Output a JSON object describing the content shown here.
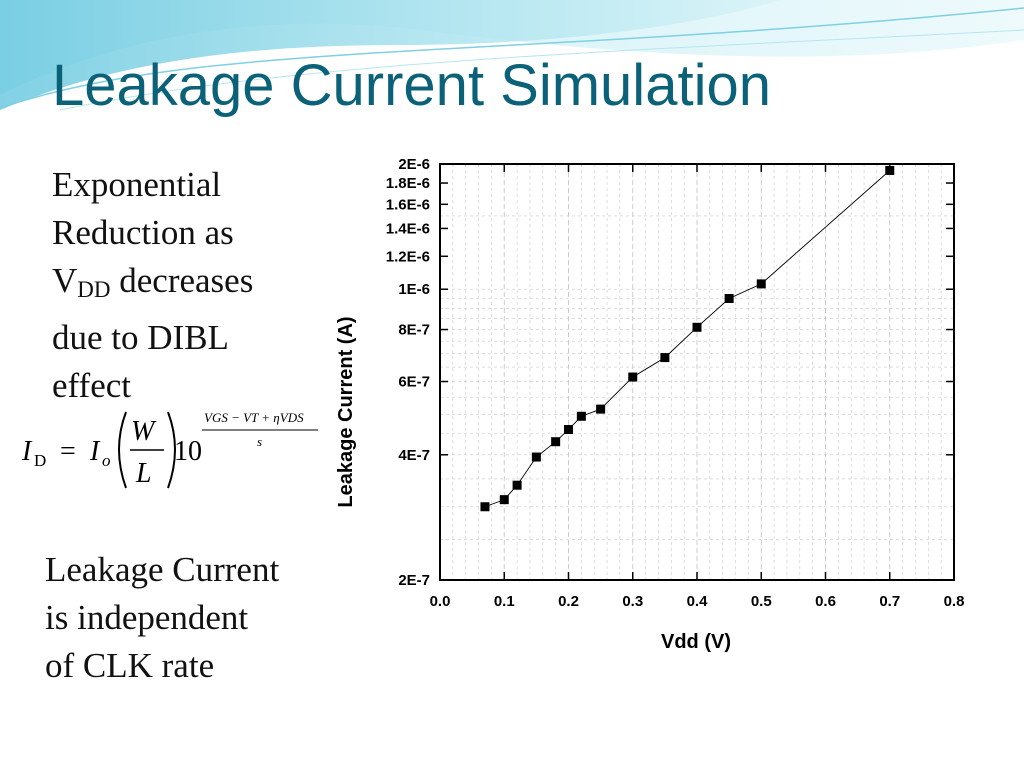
{
  "slide": {
    "title": "Leakage Current Simulation",
    "para1": {
      "line1": "Exponential",
      "line2": "Reduction as",
      "line3_main": "V",
      "line3_sub": "DD",
      "line3_rest": " decreases",
      "line4": "due to DIBL",
      "line5": "effect"
    },
    "para2": {
      "line1": "Leakage Current",
      "line2": "is independent",
      "line3": "of  CLK rate"
    },
    "formula": {
      "lhs": "I",
      "lhs_sub": "D",
      "eq": "=",
      "io": "I",
      "io_sub": "o",
      "numerator": "W",
      "denominator": "L",
      "base": "10",
      "exponent": "VGS − VT + ηVDS",
      "exponent_denominator": "s"
    }
  },
  "chart_data": {
    "type": "scatter",
    "title": "",
    "xlabel": "Vdd (V)",
    "ylabel": "Leakage Current (A)",
    "xlim": [
      0.0,
      0.8
    ],
    "ylim": [
      2e-07,
      2e-06
    ],
    "yscale": "log",
    "grid": true,
    "x_ticks": [
      {
        "v": 0.0,
        "label": "0.0"
      },
      {
        "v": 0.1,
        "label": "0.1"
      },
      {
        "v": 0.2,
        "label": "0.2"
      },
      {
        "v": 0.3,
        "label": "0.3"
      },
      {
        "v": 0.4,
        "label": "0.4"
      },
      {
        "v": 0.5,
        "label": "0.5"
      },
      {
        "v": 0.6,
        "label": "0.6"
      },
      {
        "v": 0.7,
        "label": "0.7"
      },
      {
        "v": 0.8,
        "label": "0.8"
      }
    ],
    "y_ticks": [
      {
        "v": 2e-07,
        "label": "2E-7"
      },
      {
        "v": 4e-07,
        "label": "4E-7"
      },
      {
        "v": 6e-07,
        "label": "6E-7"
      },
      {
        "v": 8e-07,
        "label": "8E-7"
      },
      {
        "v": 1e-06,
        "label": "1E-6"
      },
      {
        "v": 1.2e-06,
        "label": "1.2E-6"
      },
      {
        "v": 1.4e-06,
        "label": "1.4E-6"
      },
      {
        "v": 1.6e-06,
        "label": "1.6E-6"
      },
      {
        "v": 1.8e-06,
        "label": "1.8E-6"
      },
      {
        "v": 2e-06,
        "label": "2E-6"
      }
    ],
    "series": [
      {
        "x": [
          0.07,
          0.1,
          0.12,
          0.15,
          0.18,
          0.2,
          0.22,
          0.25,
          0.3,
          0.35,
          0.4,
          0.45,
          0.5,
          0.7
        ],
        "y": [
          3e-07,
          3.12e-07,
          3.38e-07,
          3.95e-07,
          4.3e-07,
          4.6e-07,
          4.95e-07,
          5.15e-07,
          6.15e-07,
          6.85e-07,
          8.1e-07,
          9.5e-07,
          1.03e-06,
          1.93e-06
        ]
      }
    ],
    "colors": {
      "marker": "#000000",
      "line": "#000000",
      "grid": "#c8c8c8"
    }
  }
}
